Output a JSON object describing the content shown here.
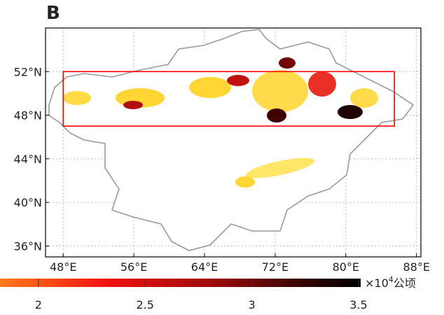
{
  "panel_label": "B",
  "map": {
    "xlim": [
      46,
      88.5
    ],
    "ylim": [
      35,
      56
    ],
    "xticks": [
      {
        "value": 48,
        "label": "48°E"
      },
      {
        "value": 56,
        "label": "56°E"
      },
      {
        "value": 64,
        "label": "64°E"
      },
      {
        "value": 72,
        "label": "72°E"
      },
      {
        "value": 80,
        "label": "80°E"
      },
      {
        "value": 88,
        "label": "88°E"
      }
    ],
    "yticks": [
      {
        "value": 52,
        "label": "52°N"
      },
      {
        "value": 48,
        "label": "48°N"
      },
      {
        "value": 44,
        "label": "44°N"
      },
      {
        "value": 40,
        "label": "40°N"
      },
      {
        "value": 36,
        "label": "36°N"
      }
    ],
    "grid": true,
    "highlight_box": {
      "lon": [
        48,
        85.5
      ],
      "lat": [
        47,
        52
      ],
      "color": "#ff0000"
    }
  },
  "colorbar": {
    "lim": [
      1.82,
      3.51
    ],
    "ticks": [
      2,
      2.5,
      3,
      3.5
    ],
    "unit_prefix": "×10",
    "unit_exponent": "4",
    "unit_name": "公顷"
  }
}
